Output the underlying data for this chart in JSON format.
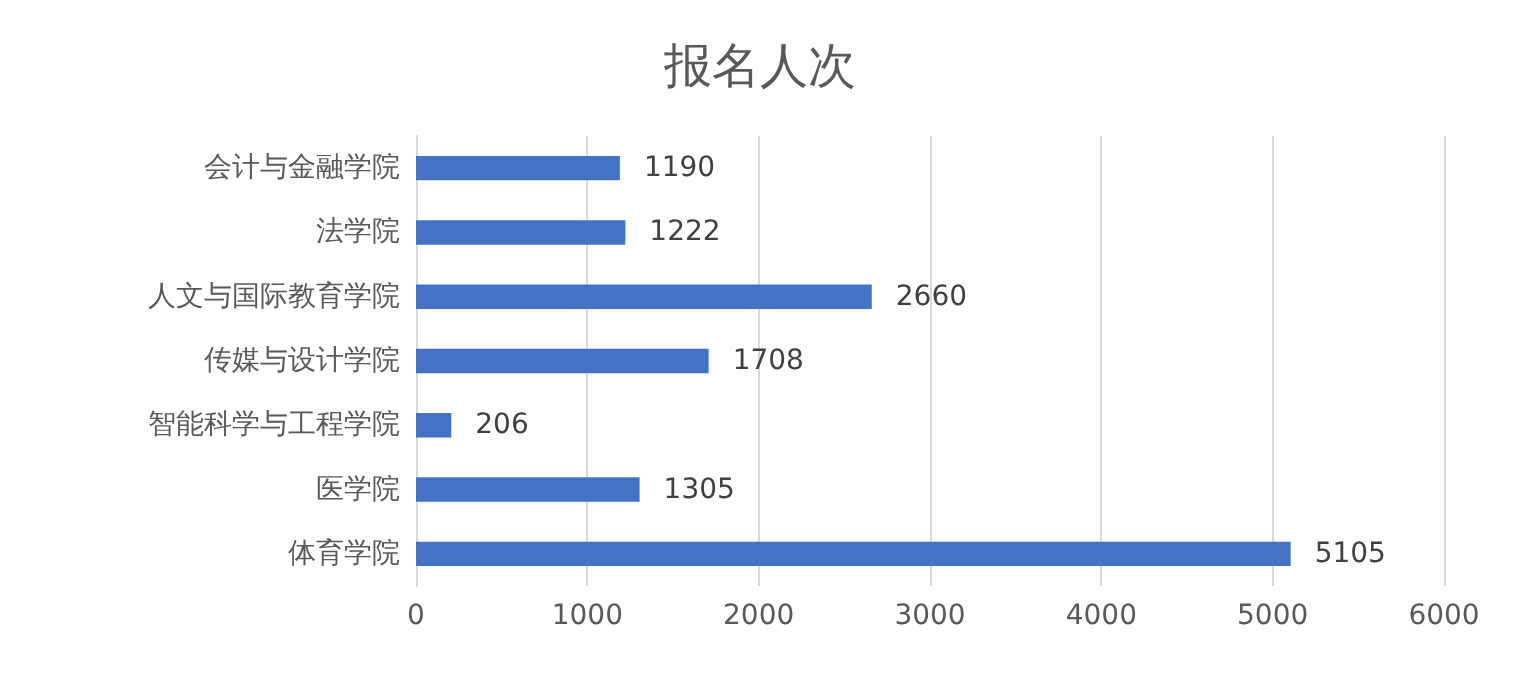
{
  "chart_data": {
    "type": "bar",
    "orientation": "horizontal",
    "title": "报名人次",
    "categories": [
      "会计与金融学院",
      "法学院",
      "人文与国际教育学院",
      "传媒与设计学院",
      "智能科学与工程学院",
      "医学院",
      "体育学院"
    ],
    "values": [
      1190,
      1222,
      2660,
      1708,
      206,
      1305,
      5105
    ],
    "color": "#4472c4",
    "xlim": [
      0,
      6000
    ],
    "xticks": [
      0,
      1000,
      2000,
      3000,
      4000,
      5000,
      6000
    ],
    "grid": "x",
    "data_labels": true
  }
}
